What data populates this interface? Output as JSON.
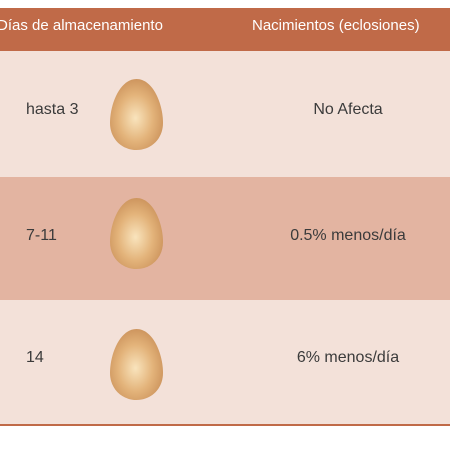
{
  "table": {
    "header": {
      "days_label": "Días de almacenamiento",
      "hatching_label": "Nacimientos (eclosiones)"
    },
    "rows": [
      {
        "days": "hasta 3",
        "icon": "egg-icon",
        "effect": "No Afecta"
      },
      {
        "days": "7-11",
        "icon": "egg-icon",
        "effect": "0.5% menos/día"
      },
      {
        "days": "14",
        "icon": "egg-icon",
        "effect": "6% menos/día"
      }
    ]
  },
  "colors": {
    "header_bg": "#c06a48",
    "row_light": "#f3e1d9",
    "row_dark": "#e3b4a1",
    "egg_light": "#f7dcb0",
    "egg_dark": "#c98f58"
  }
}
